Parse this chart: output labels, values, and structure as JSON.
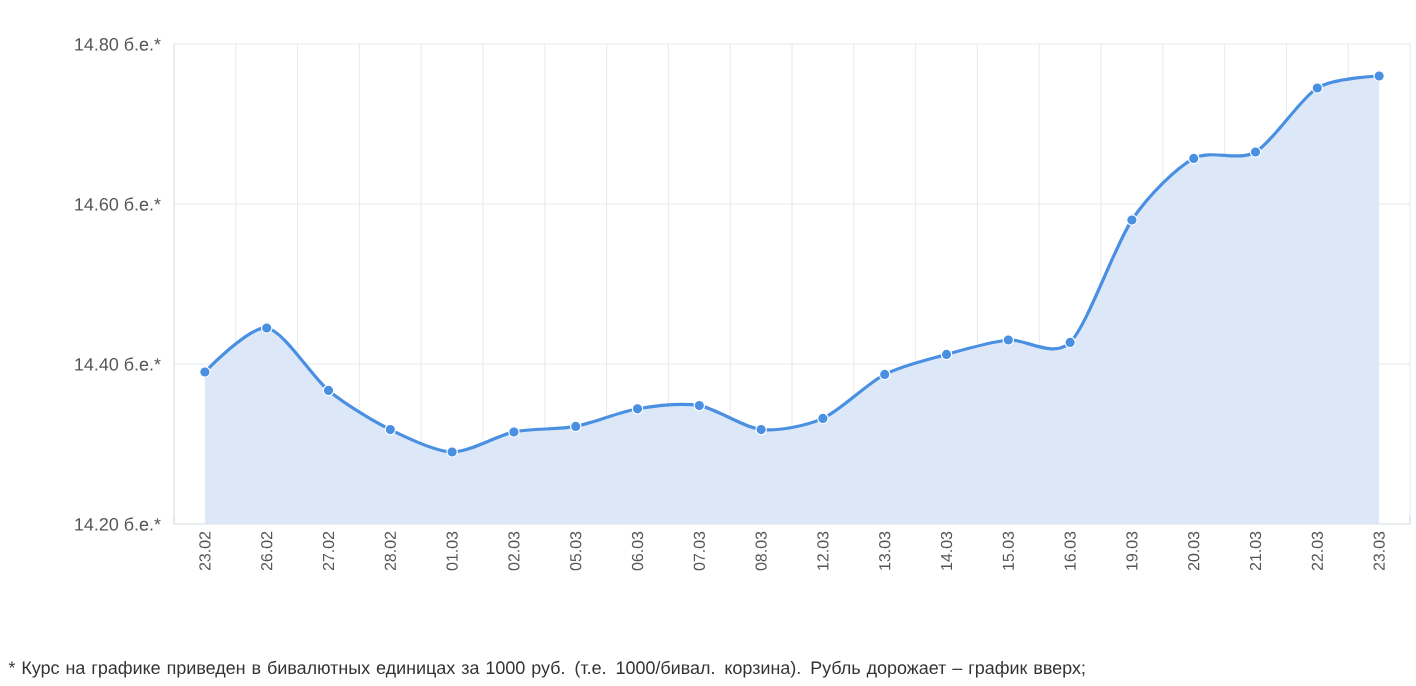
{
  "chart_data": {
    "type": "area",
    "categories": [
      "23.02",
      "26.02",
      "27.02",
      "28.02",
      "01.03",
      "02.03",
      "05.03",
      "06.03",
      "07.03",
      "08.03",
      "12.03",
      "13.03",
      "14.03",
      "15.03",
      "16.03",
      "19.03",
      "20.03",
      "21.03",
      "22.03",
      "23.03"
    ],
    "values": [
      14.39,
      14.445,
      14.367,
      14.318,
      14.29,
      14.315,
      14.322,
      14.344,
      14.348,
      14.318,
      14.332,
      14.387,
      14.412,
      14.43,
      14.427,
      14.58,
      14.657,
      14.665,
      14.745,
      14.76
    ],
    "color": "#4a90e2",
    "ylim": [
      14.2,
      14.8
    ],
    "yticks": [
      {
        "value": 14.2,
        "label": "14.20 б.е.*"
      },
      {
        "value": 14.4,
        "label": "14.40 б.е.*"
      },
      {
        "value": 14.6,
        "label": "14.60 б.е.*"
      },
      {
        "value": 14.8,
        "label": "14.80 б.е.*"
      }
    ],
    "grid": true,
    "marker": "circle",
    "line_style": "solid",
    "annotations": [
      "* Курс на графике приведен в бивалютных единицах за 1000 руб. (т.е. 1000/бивал. корзина). Рубль дорожает – график вверх;"
    ]
  }
}
